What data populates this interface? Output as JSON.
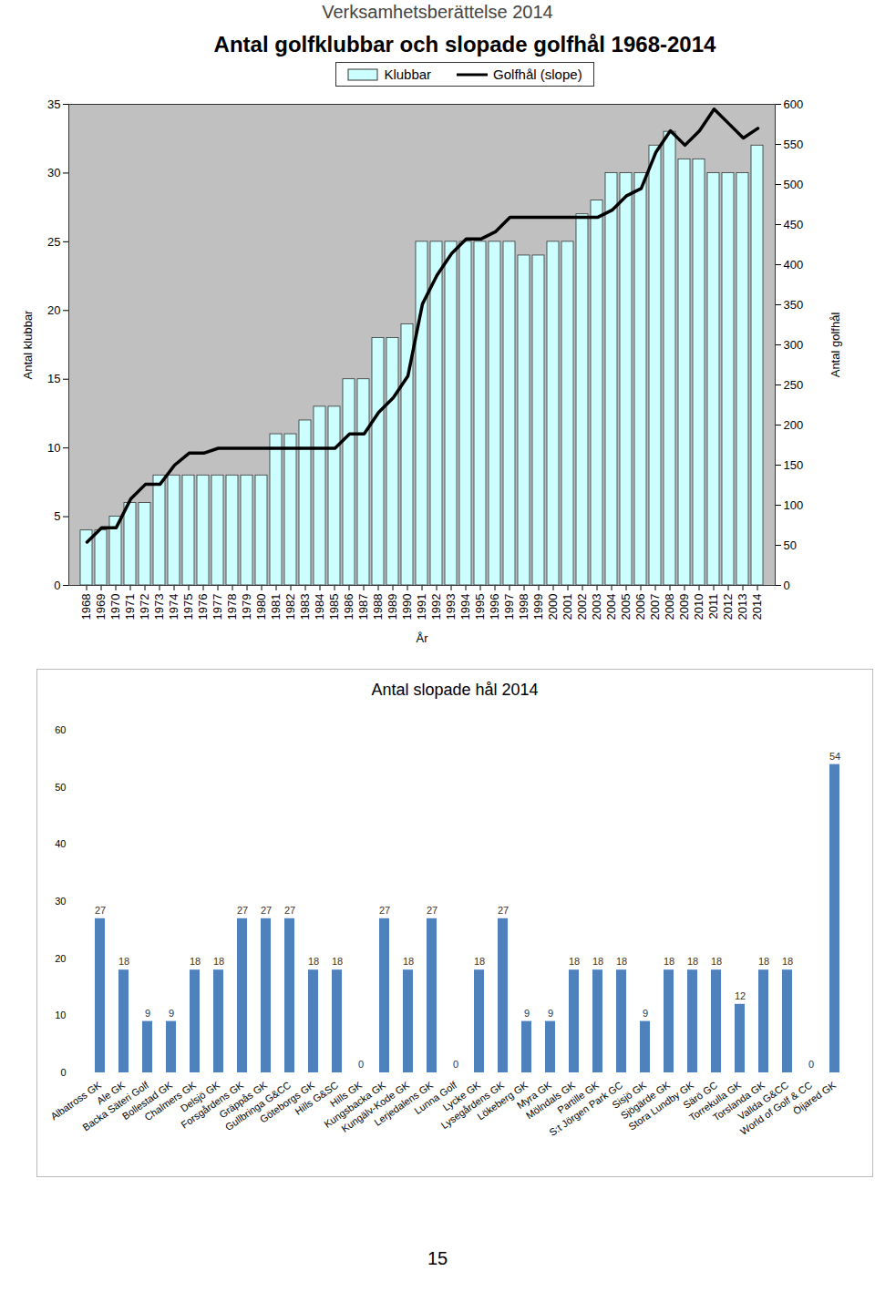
{
  "page": {
    "header": "Verksamhetsberättelse 2014",
    "page_number": "15"
  },
  "chart_data": [
    {
      "type": "bar",
      "title": "Antal golfklubbar och slopade golfhål 1968-2014",
      "x_label": "År",
      "y_label": "Antal klubbar",
      "y2_label": "Antal golfhål",
      "categories": [
        "1968",
        "1969",
        "1970",
        "1971",
        "1972",
        "1973",
        "1974",
        "1975",
        "1976",
        "1977",
        "1978",
        "1979",
        "1980",
        "1981",
        "1982",
        "1983",
        "1984",
        "1985",
        "1986",
        "1987",
        "1988",
        "1989",
        "1990",
        "1991",
        "1992",
        "1993",
        "1994",
        "1995",
        "1996",
        "1997",
        "1998",
        "1999",
        "2000",
        "2001",
        "2002",
        "2003",
        "2004",
        "2005",
        "2006",
        "2007",
        "2008",
        "2009",
        "2010",
        "2011",
        "2012",
        "2013",
        "2014"
      ],
      "series": [
        {
          "name": "Klubbar",
          "type": "bar",
          "color": "#ccffff",
          "values": [
            4,
            4,
            5,
            6,
            6,
            8,
            8,
            8,
            8,
            8,
            8,
            8,
            8,
            11,
            11,
            12,
            13,
            13,
            15,
            15,
            18,
            18,
            19,
            25,
            25,
            25,
            25,
            25,
            25,
            25,
            24,
            24,
            25,
            25,
            27,
            28,
            30,
            30,
            30,
            32,
            33,
            31,
            31,
            30,
            30,
            30,
            32
          ]
        },
        {
          "name": "Golfhål (slope)",
          "type": "line",
          "color": "#000000",
          "axis": "y2",
          "values": [
            54,
            72,
            72,
            108,
            126,
            126,
            150,
            165,
            165,
            171,
            171,
            171,
            171,
            171,
            171,
            171,
            171,
            171,
            189,
            189,
            216,
            234,
            261,
            351,
            387,
            414,
            432,
            432,
            441,
            459,
            459,
            459,
            459,
            459,
            459,
            459,
            468,
            486,
            495,
            540,
            567,
            549,
            567,
            594,
            576,
            558,
            570
          ]
        }
      ],
      "ylim": [
        0,
        35
      ],
      "yticks": [
        0,
        5,
        10,
        15,
        20,
        25,
        30,
        35
      ],
      "y2lim": [
        0,
        600
      ],
      "y2ticks": [
        0,
        50,
        100,
        150,
        200,
        250,
        300,
        350,
        400,
        450,
        500,
        550,
        600
      ],
      "legend": "top",
      "grid": false
    },
    {
      "type": "bar",
      "title": "Antal slopade hål 2014",
      "categories": [
        "Albatross GK",
        "Ale GK",
        "Backa Säteri Golf",
        "Bollestad GK",
        "Chalmers GK",
        "Delsjö GK",
        "Forsgårdens GK",
        "Gräppås GK",
        "Gullbringa G&CC",
        "Göteborgs GK",
        "Hills G&SC",
        "Hills GK",
        "Kungsbacka GK",
        "Kungälv-Kode GK",
        "Lerjedalens GK",
        "Lunna Golf",
        "Lycke GK",
        "Lysegårdens GK",
        "Lökeberg GK",
        "Myra GK",
        "Mölndals GK",
        "Partille GK",
        "S:t Jörgen Park GC",
        "Sisjö GK",
        "Sjögärde GK",
        "Stora Lundby GK",
        "Särö GC",
        "Torrekulla GK",
        "Torslanda GK",
        "Vallda G&CC",
        "World of Golf & CC",
        "Öijared GK"
      ],
      "values": [
        27,
        18,
        9,
        9,
        18,
        18,
        27,
        27,
        27,
        18,
        18,
        0,
        27,
        18,
        27,
        0,
        18,
        27,
        9,
        9,
        18,
        18,
        18,
        9,
        18,
        18,
        18,
        12,
        18,
        18,
        0,
        54
      ],
      "color": "#4f81bd",
      "ylim": [
        0,
        60
      ],
      "yticks": [
        0,
        10,
        20,
        30,
        40,
        50,
        60
      ],
      "data_labels": true,
      "grid": false
    }
  ]
}
